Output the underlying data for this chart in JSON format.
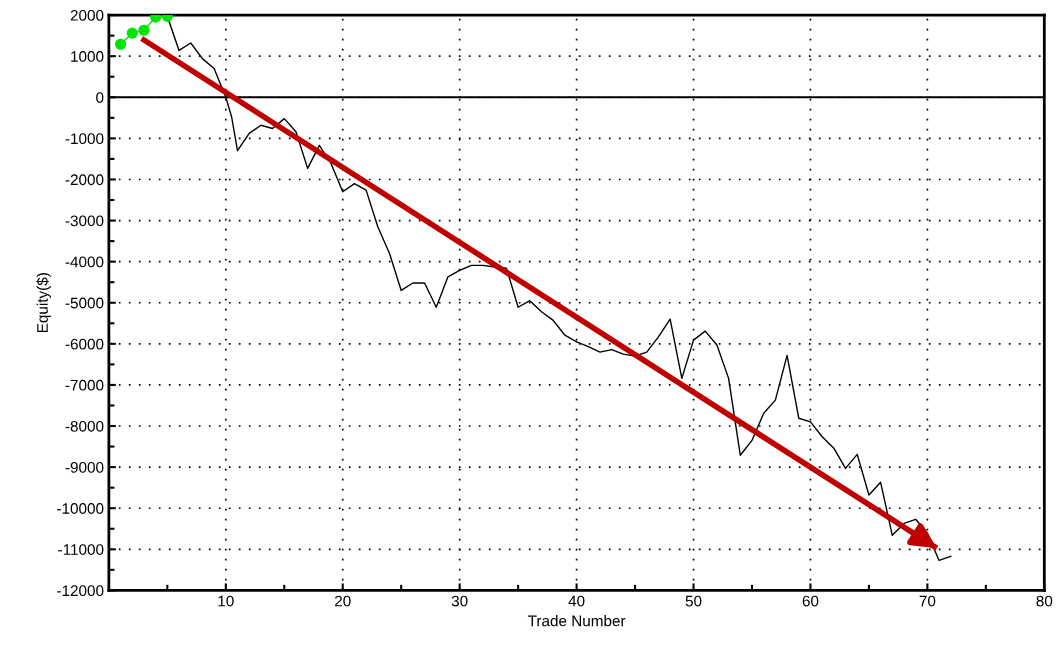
{
  "chart_data": {
    "type": "line",
    "xlabel": "Trade Number",
    "ylabel": "Equity($)",
    "xlim": [
      0,
      80
    ],
    "xticks": [
      10,
      20,
      30,
      40,
      50,
      60,
      70,
      80
    ],
    "ylim": [
      -12000,
      2000
    ],
    "yticks": [
      -12000,
      -11000,
      -10000,
      -9000,
      -8000,
      -7000,
      -6000,
      -5000,
      -4000,
      -3000,
      -2000,
      -1000,
      0,
      1000,
      2000
    ],
    "grid": true,
    "line_style": "solid",
    "ref_lines": [
      {
        "axis": "y",
        "value": 0,
        "color": "#000000",
        "line_style": "solid"
      }
    ],
    "series": [
      {
        "color": "#000000",
        "marker": "none",
        "x": [
          5,
          6,
          7,
          8,
          9,
          10,
          10.5,
          11,
          12,
          13,
          14,
          15,
          16,
          17,
          18,
          19,
          20,
          21,
          22,
          23,
          24,
          25,
          26,
          27,
          28,
          29,
          30,
          31,
          32,
          33,
          34,
          35,
          36,
          37,
          38,
          39,
          40,
          41,
          42,
          43,
          44,
          45,
          46,
          47,
          48,
          49,
          50,
          51,
          52,
          53,
          54,
          55,
          56,
          57,
          58,
          59,
          60,
          61,
          62,
          63,
          64,
          65,
          66,
          67,
          68,
          69,
          70,
          71,
          72
        ],
        "values": [
          1970,
          1140,
          1320,
          940,
          700,
          0,
          -480,
          -1300,
          -880,
          -680,
          -760,
          -520,
          -840,
          -1730,
          -1170,
          -1610,
          -2300,
          -2100,
          -2260,
          -3150,
          -3800,
          -4700,
          -4520,
          -4520,
          -5110,
          -4370,
          -4210,
          -4090,
          -4090,
          -4130,
          -4160,
          -5110,
          -4950,
          -5220,
          -5430,
          -5790,
          -5950,
          -6070,
          -6200,
          -6140,
          -6250,
          -6300,
          -6200,
          -5830,
          -5400,
          -6840,
          -5910,
          -5690,
          -6030,
          -6840,
          -8710,
          -8350,
          -7690,
          -7370,
          -6280,
          -7810,
          -7900,
          -8260,
          -8540,
          -9030,
          -8690,
          -9680,
          -9370,
          -10660,
          -10370,
          -10270,
          -10610,
          -11270,
          -11170
        ]
      },
      {
        "color": "#00e600",
        "marker": "circle",
        "x": [
          1,
          2,
          3,
          4,
          5
        ],
        "values": [
          1290,
          1560,
          1630,
          1950,
          1970
        ]
      },
      {
        "color": "#c00000",
        "marker": "none",
        "x": [
          2.8,
          70.8
        ],
        "values": [
          1430,
          -10970
        ]
      }
    ]
  }
}
